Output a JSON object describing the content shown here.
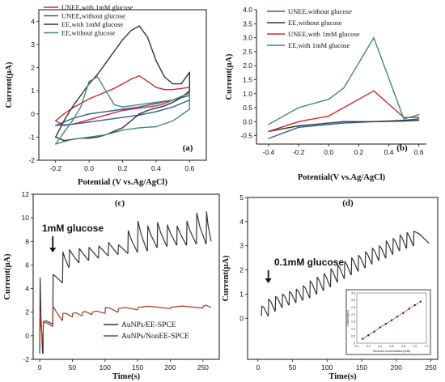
{
  "chart_data": [
    {
      "panel_label": "(a)",
      "type": "line",
      "xlabel": "Potential (V vs.Ag/AgCl)",
      "ylabel": "Current(μA)",
      "xlim": [
        -0.3,
        0.7
      ],
      "ylim": [
        -2,
        4.5
      ],
      "xticks": [
        "-0.2",
        "0.0",
        "0.2",
        "0.4",
        "0.6"
      ],
      "yticks": [
        "-2",
        "-1",
        "0",
        "1",
        "2",
        "3",
        "4"
      ],
      "legend_position": "top-left",
      "colors": [
        "#d42a2a",
        "#2f5b9a",
        "#333333",
        "#3e8a79"
      ],
      "series": [
        {
          "name": "UNEE,with 1mM glucose",
          "x": [
            -0.2,
            -0.15,
            -0.1,
            -0.05,
            0,
            0.05,
            0.1,
            0.15,
            0.2,
            0.25,
            0.3,
            0.35,
            0.4,
            0.45,
            0.5,
            0.55,
            0.6,
            0.6,
            0.55,
            0.5,
            0.45,
            0.4,
            0.35,
            0.3,
            0.25,
            0.2,
            0.15,
            0.1,
            0.05,
            0,
            -0.05,
            -0.1,
            -0.15,
            -0.2
          ],
          "values": [
            -0.3,
            0.0,
            0.25,
            0.45,
            0.65,
            0.8,
            0.95,
            1.1,
            1.3,
            1.5,
            1.65,
            1.4,
            1.15,
            1.05,
            1.05,
            1.1,
            1.15,
            0.9,
            0.75,
            0.6,
            0.45,
            0.35,
            0.3,
            0.25,
            0.2,
            0.15,
            0.05,
            -0.05,
            -0.15,
            -0.25,
            -0.35,
            -0.45,
            -0.5,
            -0.3
          ]
        },
        {
          "name": "UNEE,without glucose",
          "x": [
            -0.2,
            -0.1,
            0,
            0.1,
            0.2,
            0.3,
            0.4,
            0.5,
            0.6,
            0.6,
            0.5,
            0.4,
            0.3,
            0.2,
            0.1,
            0,
            -0.1,
            -0.2
          ],
          "values": [
            -0.5,
            -0.2,
            0.0,
            0.1,
            0.2,
            0.3,
            0.45,
            0.6,
            0.8,
            0.6,
            0.3,
            0.1,
            -0.05,
            -0.15,
            -0.25,
            -0.35,
            -0.45,
            -0.5
          ]
        },
        {
          "name": "EE,with 1mM glucose",
          "x": [
            -0.2,
            -0.15,
            -0.1,
            -0.05,
            0,
            0.05,
            0.1,
            0.15,
            0.2,
            0.25,
            0.3,
            0.35,
            0.4,
            0.45,
            0.5,
            0.55,
            0.6,
            0.6,
            0.55,
            0.5,
            0.45,
            0.4,
            0.35,
            0.3,
            0.25,
            0.2,
            0.15,
            0.1,
            0.05,
            0,
            -0.05,
            -0.1,
            -0.15,
            -0.2
          ],
          "values": [
            -1.0,
            -0.3,
            0.3,
            0.8,
            1.3,
            1.7,
            2.2,
            2.7,
            3.2,
            3.6,
            3.8,
            3.3,
            2.3,
            1.6,
            1.3,
            1.3,
            1.8,
            1.0,
            0.7,
            0.5,
            0.35,
            0.25,
            0.15,
            0.0,
            -0.3,
            -0.6,
            -0.75,
            -0.9,
            -1.0,
            -1.05,
            -1.05,
            -1.1,
            -1.15,
            -1.0
          ]
        },
        {
          "name": "EE,without glucose",
          "x": [
            -0.2,
            -0.15,
            -0.1,
            -0.05,
            0,
            0.05,
            0.1,
            0.15,
            0.2,
            0.3,
            0.4,
            0.5,
            0.6,
            0.6,
            0.5,
            0.4,
            0.3,
            0.2,
            0.15,
            0.1,
            0.05,
            0,
            -0.05,
            -0.1,
            -0.15,
            -0.2
          ],
          "values": [
            -1.3,
            -0.8,
            -0.3,
            0.3,
            1.4,
            1.6,
            1.0,
            0.4,
            0.3,
            0.4,
            0.5,
            0.6,
            0.9,
            0.2,
            -0.3,
            -0.55,
            -0.6,
            -0.7,
            -0.8,
            -0.9,
            -0.95,
            -1.0,
            -1.05,
            -1.1,
            -1.2,
            -1.3
          ]
        }
      ]
    },
    {
      "panel_label": "(b)",
      "type": "line",
      "xlabel": "Potential(V vs.Ag/AgCl)",
      "ylabel": "Current(μA)",
      "xlim": [
        -0.48,
        0.65
      ],
      "ylim": [
        -0.8,
        4.0
      ],
      "xticks": [
        "-0.4",
        "-0.2",
        "0.0",
        "0.2",
        "0.4",
        "0.6"
      ],
      "yticks": [
        "-0.5",
        "0.0",
        "0.5",
        "1.0",
        "1.5",
        "2.0",
        "2.5",
        "3.0",
        "3.5",
        "4.0"
      ],
      "legend_position": "top-left",
      "colors": [
        "#2f5b9a",
        "#333333",
        "#d42a2a",
        "#3e8a79"
      ],
      "series": [
        {
          "name": "UNEE,without glucose",
          "x": [
            -0.4,
            -0.2,
            0.0,
            0.1,
            0.3,
            0.5,
            0.6
          ],
          "values": [
            -0.6,
            -0.2,
            -0.1,
            -0.05,
            0.0,
            0.05,
            0.1
          ]
        },
        {
          "name": "EE,without glucose",
          "x": [
            -0.4,
            -0.2,
            0.0,
            0.1,
            0.3,
            0.5,
            0.6
          ],
          "values": [
            -0.35,
            -0.15,
            -0.05,
            0.0,
            0.0,
            0.02,
            0.05
          ]
        },
        {
          "name": "UNEE,with 1mM glucose",
          "x": [
            -0.4,
            -0.2,
            0.0,
            0.1,
            0.3,
            0.5,
            0.6
          ],
          "values": [
            -0.35,
            0.0,
            0.2,
            0.5,
            1.1,
            0.15,
            0.15
          ]
        },
        {
          "name": "EE,with 1mM glucose",
          "x": [
            -0.4,
            -0.2,
            0.0,
            0.1,
            0.3,
            0.5,
            0.6
          ],
          "values": [
            -0.1,
            0.5,
            0.8,
            1.2,
            3.0,
            0.1,
            0.25
          ]
        }
      ]
    },
    {
      "panel_label": "(c)",
      "type": "line",
      "xlabel": "Time(s)",
      "ylabel": "Current(μA)",
      "xlim": [
        -10,
        275
      ],
      "ylim": [
        -2,
        12
      ],
      "xticks": [
        "0",
        "50",
        "100",
        "150",
        "200",
        "250"
      ],
      "yticks": [
        "-2",
        "0",
        "2",
        "4",
        "6",
        "8",
        "10",
        "12"
      ],
      "annotation": "1mM glucose",
      "annotation_x": 20,
      "legend_position": "bottom-right",
      "colors": [
        "#333333",
        "#a33a22"
      ],
      "series": [
        {
          "name": "AuNPs/EE-SPCE",
          "step_times": [
            0,
            5,
            20,
            35,
            45,
            60,
            75,
            90,
            105,
            120,
            135,
            150,
            165,
            180,
            195,
            210,
            225,
            240,
            255
          ],
          "step_peaks": [
            4.9,
            1.2,
            5.2,
            7.1,
            7.3,
            7.4,
            7.5,
            7.6,
            7.9,
            7.7,
            8.9,
            9.7,
            9.3,
            9.6,
            9.4,
            9.3,
            9.7,
            10.4,
            10.5
          ],
          "step_bases": [
            -1.5,
            1.0,
            4.5,
            5.8,
            6.2,
            6.4,
            6.6,
            6.8,
            6.9,
            7.0,
            7.1,
            7.2,
            7.5,
            7.6,
            7.7,
            7.7,
            7.8,
            7.8,
            8.0
          ]
        },
        {
          "name": "AuNPs/NonEE-SPCE",
          "step_times": [
            0,
            5,
            20,
            35,
            50,
            65,
            80,
            100,
            120,
            150,
            200,
            250
          ],
          "step_peaks": [
            2.0,
            1.1,
            2.5,
            1.9,
            1.9,
            2.0,
            2.0,
            2.4,
            2.3,
            2.4,
            2.4,
            2.5
          ],
          "step_bases": [
            -0.5,
            0.8,
            1.3,
            1.6,
            1.7,
            1.8,
            1.9,
            2.0,
            2.2,
            2.3,
            2.35,
            2.4
          ]
        }
      ]
    },
    {
      "panel_label": "(d)",
      "type": "line",
      "xlabel": "Time(s)",
      "ylabel": "Current(μA)",
      "xlim": [
        -15,
        260
      ],
      "ylim": [
        -1.7,
        5
      ],
      "xticks": [
        "0",
        "50",
        "100",
        "150",
        "200",
        "250"
      ],
      "yticks": [
        "0",
        "1",
        "2",
        "3",
        "4",
        "5"
      ],
      "annotation": "0.1mM glucose",
      "annotation_x": 15,
      "colors": [
        "#333333"
      ],
      "series": [
        {
          "name": "",
          "step_times": [
            5,
            15,
            25,
            35,
            45,
            55,
            65,
            75,
            85,
            95,
            105,
            115,
            125,
            135,
            145,
            155,
            165,
            175,
            185,
            195,
            205,
            215,
            225
          ],
          "step_peaks": [
            0.5,
            0.8,
            0.9,
            1.0,
            1.1,
            1.2,
            1.35,
            1.55,
            1.7,
            1.85,
            2.05,
            2.2,
            2.35,
            2.5,
            2.6,
            2.75,
            2.9,
            3.0,
            3.2,
            3.3,
            3.45,
            3.55,
            3.6
          ],
          "step_bases": [
            0.1,
            0.3,
            0.45,
            0.55,
            0.65,
            0.75,
            0.85,
            1.0,
            1.15,
            1.3,
            1.5,
            1.65,
            1.8,
            1.95,
            2.1,
            2.25,
            2.4,
            2.5,
            2.65,
            2.8,
            2.9,
            3.0,
            3.1
          ]
        }
      ],
      "inset": {
        "type": "scatter",
        "xlabel": "Glucose concentration(mM)",
        "ylabel": "Current(μA)",
        "xlim": [
          0,
          1.2
        ],
        "ylim": [
          0,
          3.5
        ],
        "xticks": [
          "0.0",
          "0.2",
          "0.4",
          "0.6",
          "0.8",
          "1.0",
          "1.2"
        ],
        "yticks": [
          "0",
          "0.5",
          "1.0",
          "1.5",
          "2.0",
          "2.5",
          "3.0",
          "3.5"
        ],
        "x": [
          0.1,
          0.2,
          0.3,
          0.4,
          0.5,
          0.6,
          0.7,
          0.8,
          0.9,
          1.0,
          1.1
        ],
        "values": [
          0.3,
          0.55,
          0.8,
          1.1,
          1.35,
          1.6,
          1.85,
          2.1,
          2.4,
          2.65,
          2.9
        ]
      }
    }
  ]
}
